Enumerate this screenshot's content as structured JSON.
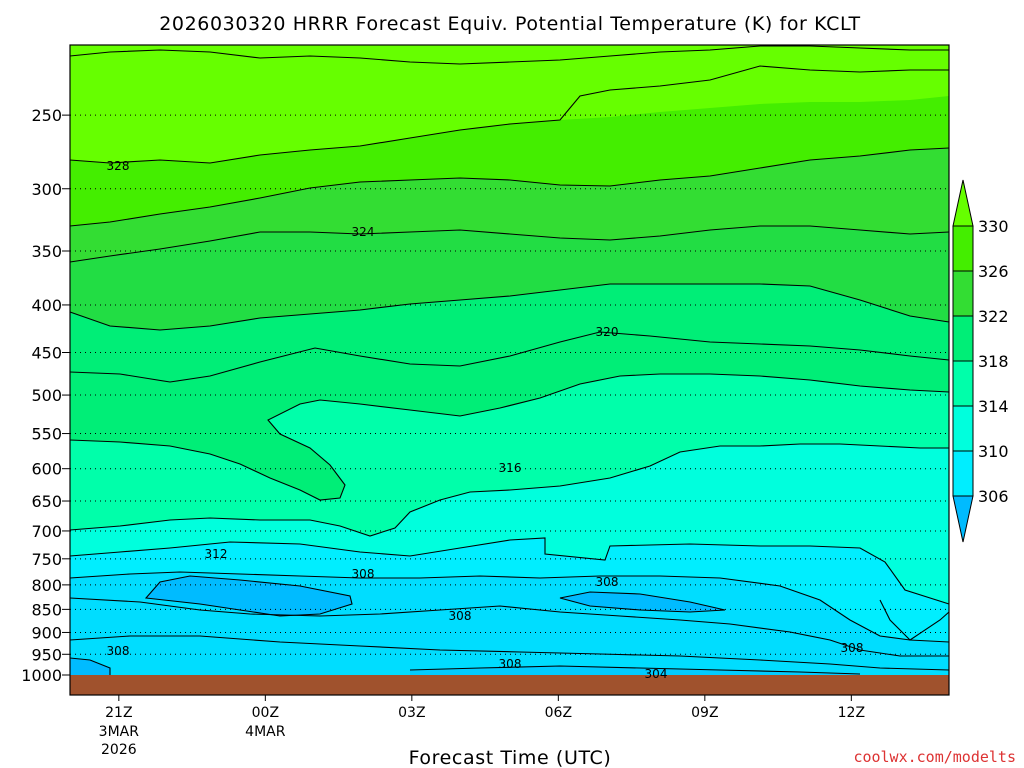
{
  "chart_data": {
    "type": "contour-filled",
    "title": "2026030320 HRRR Forecast Equiv. Potential Temperature (K) for KCLT",
    "xlabel": "Forecast Time (UTC)",
    "credit": "coolwx.com/modelts",
    "y_axis": {
      "ticks": [
        "250",
        "300",
        "350",
        "400",
        "450",
        "500",
        "550",
        "600",
        "650",
        "700",
        "750",
        "800",
        "850",
        "900",
        "950",
        "1000"
      ],
      "reversed_pressure": true,
      "ylim": [
        1000,
        200
      ]
    },
    "x_axis": {
      "ticks": [
        {
          "label": "21Z",
          "date_lines": [
            "3MAR",
            "2026"
          ]
        },
        {
          "label": "00Z",
          "date_lines": [
            "4MAR"
          ]
        },
        {
          "label": "03Z",
          "date_lines": []
        },
        {
          "label": "06Z",
          "date_lines": []
        },
        {
          "label": "09Z",
          "date_lines": []
        },
        {
          "label": "12Z",
          "date_lines": []
        }
      ],
      "xlim_hours_from_start": [
        0,
        18
      ]
    },
    "grid": "dotted horizontal lines at each pressure tick",
    "contour_interval": 4,
    "contour_labels": [
      "328",
      "324",
      "320",
      "316",
      "312",
      "308",
      "308",
      "308",
      "308",
      "308",
      "304"
    ],
    "colorbar": {
      "levels": [
        "330",
        "326",
        "322",
        "318",
        "314",
        "310",
        "306"
      ],
      "colors": {
        "above_330": "#66ff00",
        "326_330": "#44ee00",
        "322_326": "#33dd33",
        "318_322": "#00ee77",
        "314_318": "#00ffaa",
        "310_314": "#00ffdd",
        "306_310": "#00eeff",
        "below_306": "#00bbff"
      },
      "extend": "both"
    },
    "ground_color": "#a0522d"
  }
}
